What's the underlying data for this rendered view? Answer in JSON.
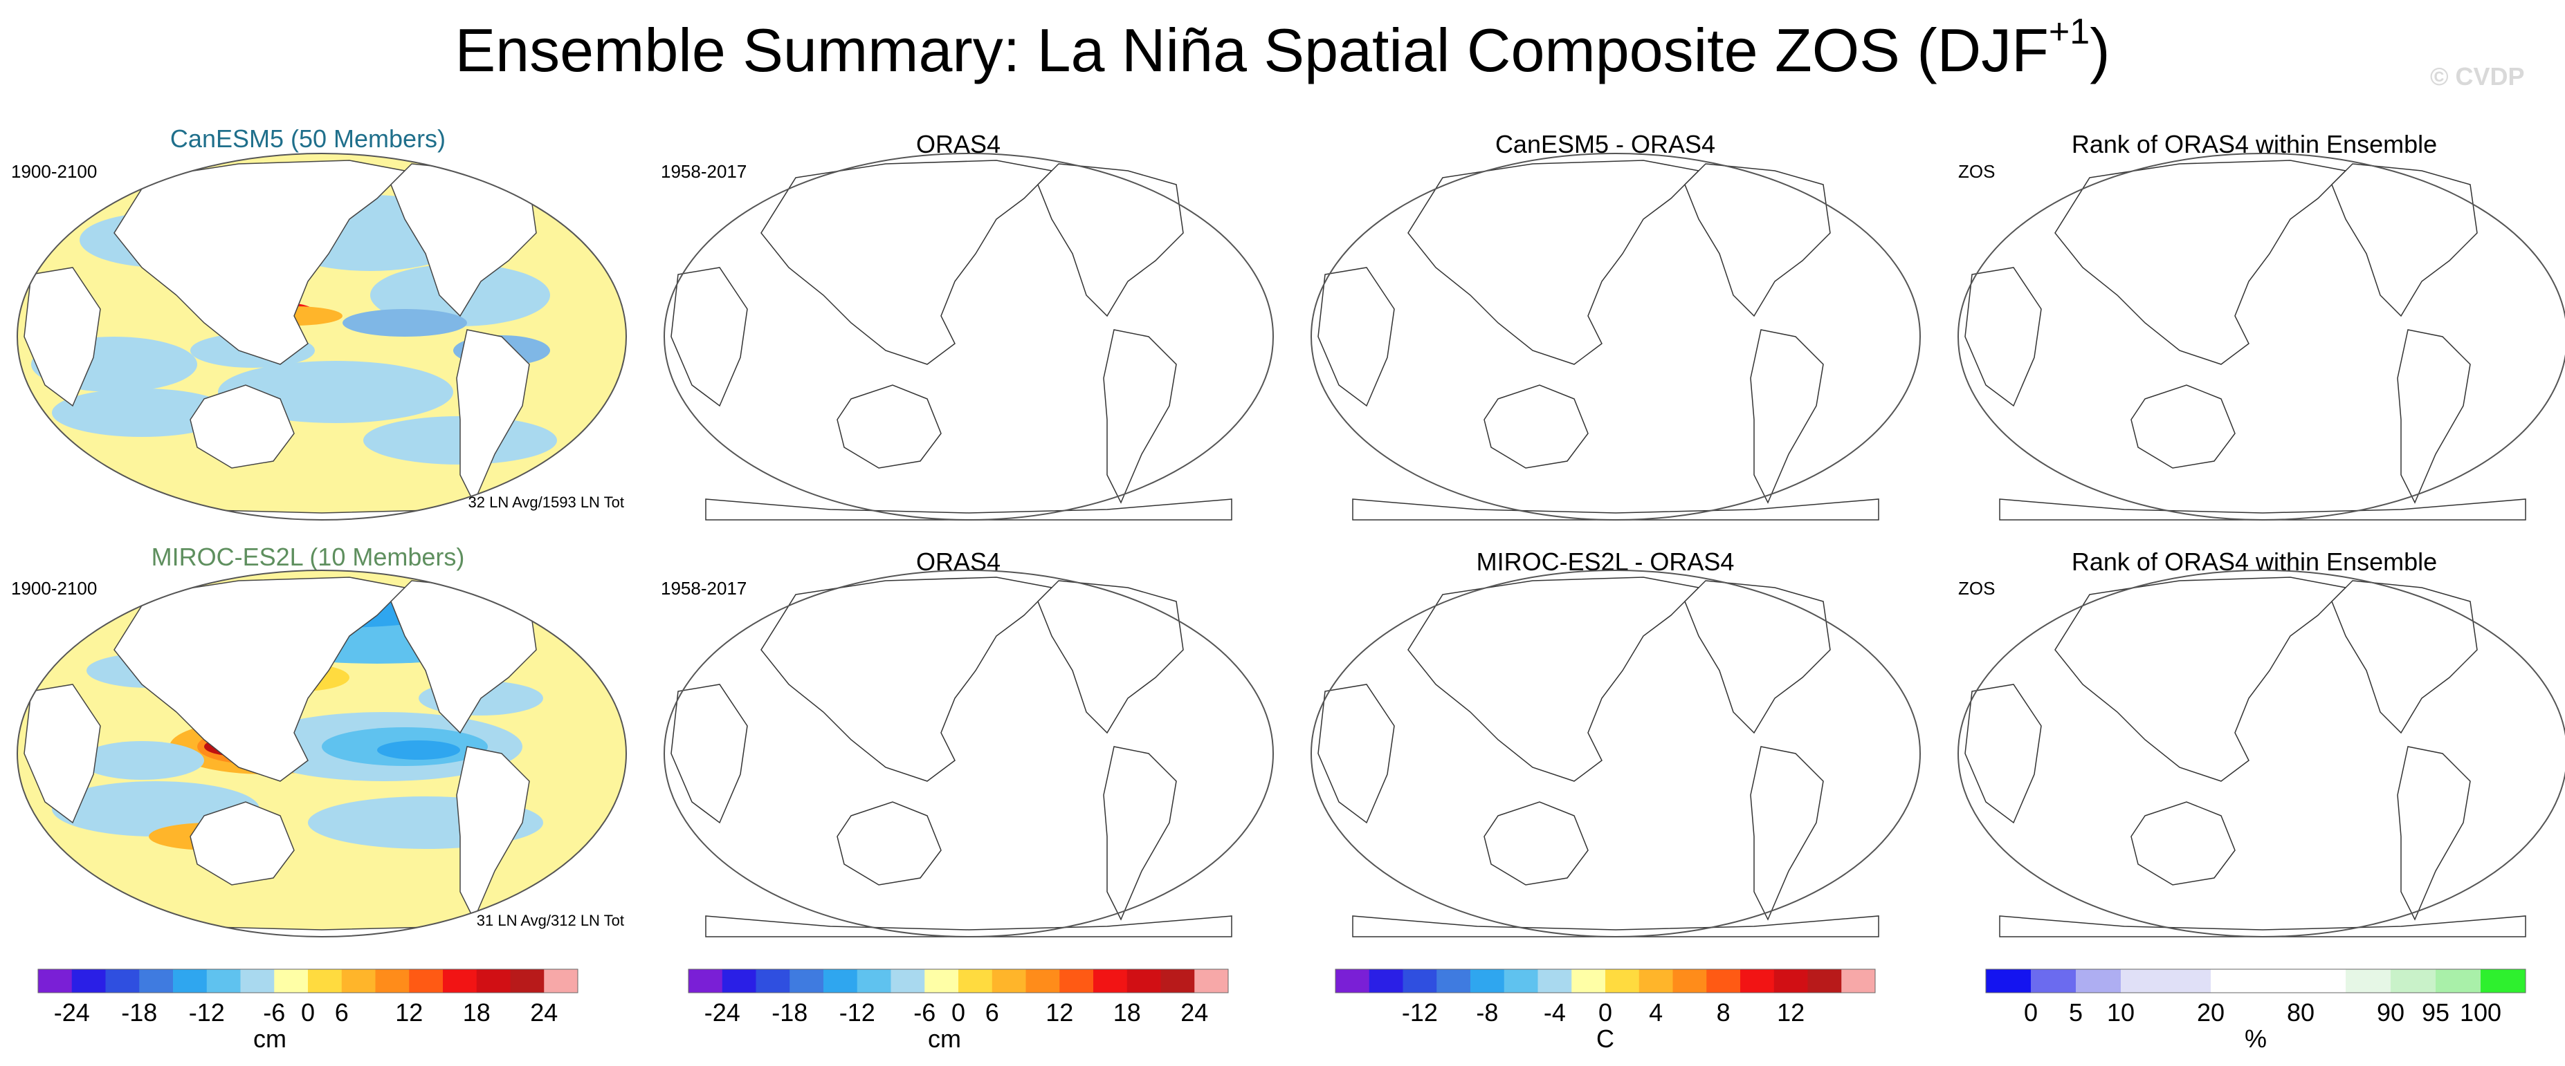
{
  "title": {
    "main": "Ensemble Summary: La Niña Spatial Composite ZOS (DJF",
    "superscript": "+1",
    "close": ")"
  },
  "watermark": "© CVDP",
  "rows": [
    {
      "model_title": "CanESM5 (50 Members)",
      "model_title_color": "#1f6f8b",
      "model_period": "1900-2100",
      "model_count": "32 LN Avg/1593 LN Tot",
      "obs_title": "ORAS4",
      "obs_period": "1958-2017",
      "diff_title": "CanESM5 - ORAS4",
      "rank_title": "Rank of ORAS4 within Ensemble",
      "rank_label": "ZOS"
    },
    {
      "model_title": "MIROC-ES2L (10 Members)",
      "model_title_color": "#5e8f5e",
      "model_period": "1900-2100",
      "model_count": "31 LN Avg/312 LN Tot",
      "obs_title": "ORAS4",
      "obs_period": "1958-2017",
      "diff_title": "MIROC-ES2L - ORAS4",
      "rank_title": "Rank of ORAS4 within Ensemble",
      "rank_label": "ZOS"
    }
  ],
  "colorbars": [
    {
      "name": "model",
      "colors": [
        "#7a1fd6",
        "#2a1fe6",
        "#2f4fe0",
        "#3f7be0",
        "#2fa6ef",
        "#5fc2ef",
        "#a9d9ef",
        "#ffffa6",
        "#ffdb3f",
        "#ffb52a",
        "#ff8c1a",
        "#ff5a14",
        "#f21414",
        "#d10f14",
        "#b81a1a",
        "#f7a8a8"
      ],
      "labels": [
        "-24",
        "-18",
        "-12",
        "-6",
        "0",
        "6",
        "12",
        "18",
        "24"
      ],
      "unit": "cm"
    },
    {
      "name": "obs",
      "colors": [
        "#7a1fd6",
        "#2a1fe6",
        "#2f4fe0",
        "#3f7be0",
        "#2fa6ef",
        "#5fc2ef",
        "#a9d9ef",
        "#ffffa6",
        "#ffdb3f",
        "#ffb52a",
        "#ff8c1a",
        "#ff5a14",
        "#f21414",
        "#d10f14",
        "#b81a1a",
        "#f7a8a8"
      ],
      "labels": [
        "-24",
        "-18",
        "-12",
        "-6",
        "0",
        "6",
        "12",
        "18",
        "24"
      ],
      "unit": "cm"
    },
    {
      "name": "diff",
      "colors": [
        "#7a1fd6",
        "#2a1fe6",
        "#2f4fe0",
        "#3f7be0",
        "#2fa6ef",
        "#5fc2ef",
        "#a9d9ef",
        "#ffffa6",
        "#ffdb3f",
        "#ffb52a",
        "#ff8c1a",
        "#ff5a14",
        "#f21414",
        "#d10f14",
        "#b81a1a",
        "#f7a8a8"
      ],
      "labels": [
        "-12",
        "-8",
        "-4",
        "0",
        "4",
        "8",
        "12"
      ],
      "unit": "C"
    },
    {
      "name": "rank",
      "colors": [
        "#1414f0",
        "#6b6bef",
        "#aeaef2",
        "#e0e0f7",
        "#e0e0f7",
        "#ffffff",
        "#ffffff",
        "#ffffff",
        "#e6f7e6",
        "#c9f2c9",
        "#a9f0a9",
        "#2ef02e"
      ],
      "labels": [
        "0",
        "5",
        "10",
        "20",
        "80",
        "90",
        "95",
        "100"
      ],
      "unit": "%"
    }
  ]
}
